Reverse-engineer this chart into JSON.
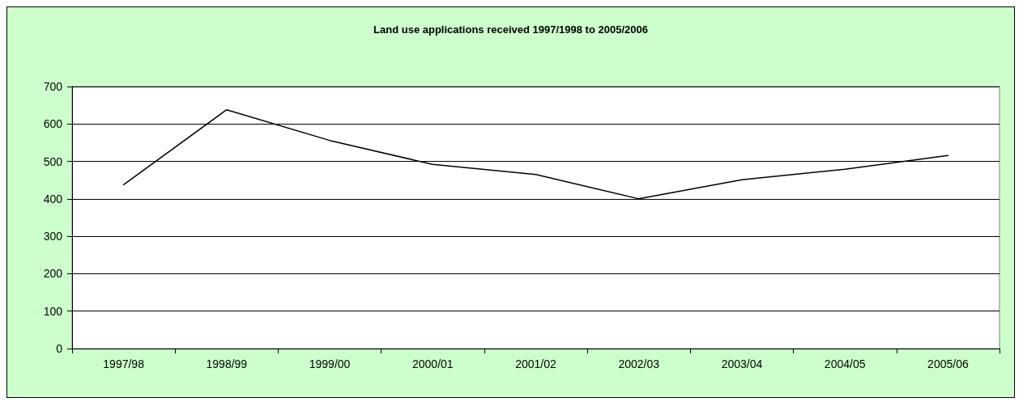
{
  "chart_data": {
    "type": "line",
    "title": "Land use applications received 1997/1998 to 2005/2006",
    "categories": [
      "1997/98",
      "1998/99",
      "1999/00",
      "2000/01",
      "2001/02",
      "2002/03",
      "2003/04",
      "2004/05",
      "2005/06"
    ],
    "series": [
      {
        "color": "#000000",
        "values": [
          438,
          638,
          556,
          492,
          465,
          400,
          451,
          479,
          516
        ]
      }
    ],
    "ylim": [
      0,
      700
    ],
    "yticks": [
      0,
      100,
      200,
      300,
      400,
      500,
      600,
      700
    ],
    "grid": "y",
    "marker": "none",
    "line_style": "solid"
  }
}
